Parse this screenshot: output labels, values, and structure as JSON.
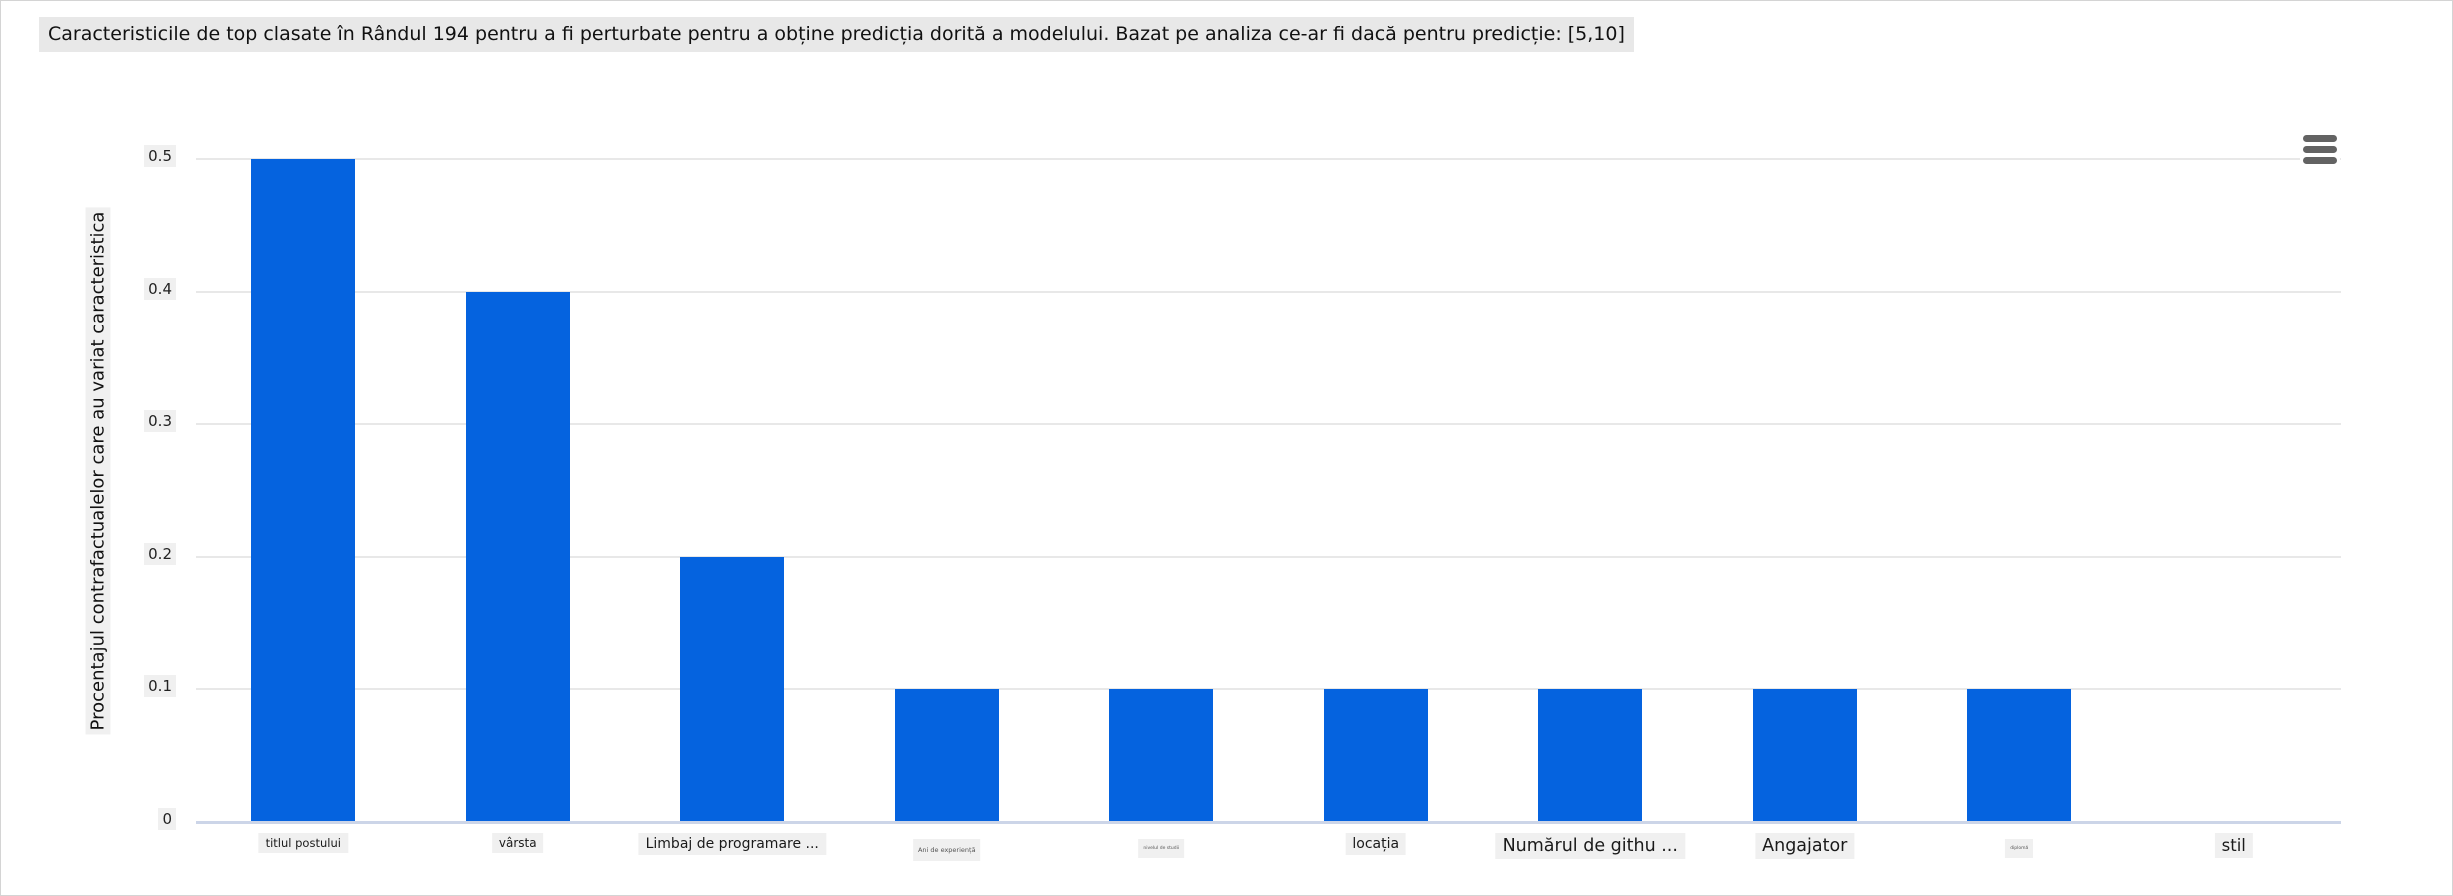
{
  "title": "Caracteristicile de top clasate în Rândul 194 pentru a fi perturbate pentru a obține predicția dorită a modelului. Bazat pe analiza ce-ar fi dacă pentru predicție: [5,10]",
  "colors": {
    "bar": "#0563df",
    "grid": "#e8e8e8",
    "zero_line": "#ccd5e8",
    "label_background": "#f0f0f0",
    "title_background": "#e8e8e8",
    "modebar_icon": "#636363"
  },
  "modebar": {
    "menu_icon": "hamburger-icon"
  },
  "chart_data": {
    "type": "bar",
    "title": "Caracteristicile de top clasate în Rândul 194 pentru a fi perturbate pentru a obține predicția dorită a modelului. Bazat pe analiza ce-ar fi dacă pentru predicție: [5,10]",
    "categories": [
      "titlul postului",
      "vârsta",
      "Limbaj de programare ...",
      "Ani de experiență",
      "nivelul de studii",
      "locația",
      "Numărul de githu ...",
      "Angajator",
      "diplomă",
      "stil"
    ],
    "values": [
      0.5,
      0.4,
      0.2,
      0.1,
      0.1,
      0.1,
      0.1,
      0.1,
      0.1,
      0
    ],
    "xlabel": "",
    "ylabel": "Procentajul contrafactualelor care au variat caracteristica",
    "ylim": [
      0,
      0.5
    ],
    "yticks": [
      "0",
      "0.1",
      "0.2",
      "0.3",
      "0.4",
      "0.5"
    ],
    "grid": true,
    "legend": "none",
    "bar_color": "#0563df",
    "tick_font_sizes": [
      11.5,
      12,
      14,
      6.5,
      4.5,
      14,
      17.5,
      17.5,
      4.5,
      16.5
    ]
  }
}
